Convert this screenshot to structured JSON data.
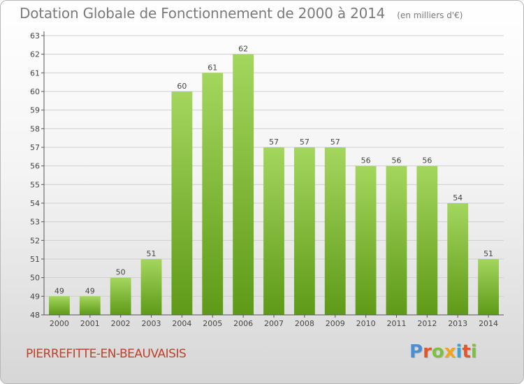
{
  "title": "Dotation Globale de Fonctionnement de 2000 à 2014",
  "subtitle": "(en milliers d'€)",
  "commune": "PIERREFITTE-EN-BEAUVAISIS",
  "logo": "Proxiti",
  "logo_colors": [
    "#4a8fd6",
    "#e0582a",
    "#7fbf3f",
    "#f2a51c",
    "#3aa2d8",
    "#e0582a",
    "#7fbf3f"
  ],
  "colors": {
    "bar_top": "#a4d65e",
    "bar_bottom": "#5e9a17",
    "axis": "#555555",
    "grid": "#cfcfcf",
    "text": "#444444",
    "title": "#7a7a7a",
    "commune": "#c0402a"
  },
  "chart_data": {
    "type": "bar",
    "title": "Dotation Globale de Fonctionnement de 2000 à 2014",
    "subtitle": "(en milliers d'€)",
    "categories": [
      "2000",
      "2001",
      "2002",
      "2003",
      "2004",
      "2005",
      "2006",
      "2007",
      "2008",
      "2009",
      "2010",
      "2011",
      "2012",
      "2013",
      "2014"
    ],
    "values": [
      49,
      49,
      50,
      51,
      60,
      61,
      62,
      57,
      57,
      57,
      56,
      56,
      56,
      54,
      51
    ],
    "ylim": [
      48,
      63
    ],
    "yticks": [
      48,
      49,
      50,
      51,
      52,
      53,
      54,
      55,
      56,
      57,
      58,
      59,
      60,
      61,
      62,
      63
    ],
    "grid": true,
    "data_labels": true
  }
}
